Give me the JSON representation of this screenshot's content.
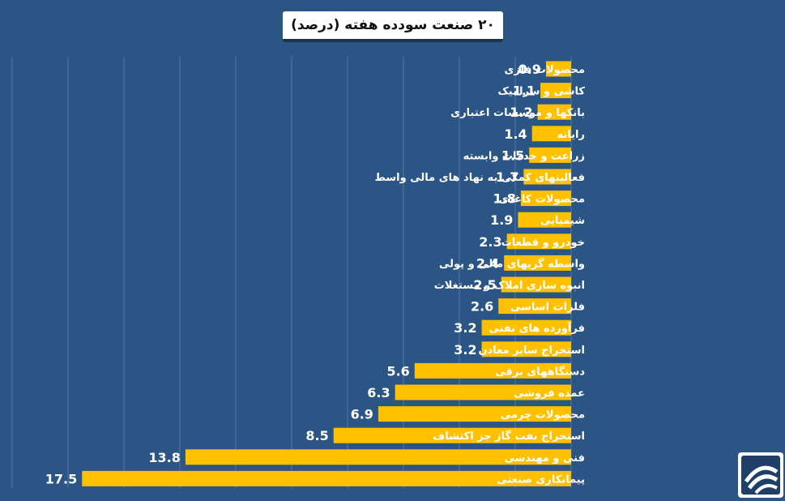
{
  "colors": {
    "background": "#2b5585",
    "bar": "#ffc000",
    "gridline": "#4f77a3",
    "label_text": "#ffffff"
  },
  "logo": {
    "icon": "logo-icon"
  },
  "chart_data": {
    "type": "bar",
    "orientation": "horizontal",
    "title": "۲۰ صنعت سودده هفته (درصد)",
    "xlabel": "",
    "ylabel": "",
    "xlim": [
      0,
      20
    ],
    "grid": true,
    "categories": [
      "محصولات فلزی",
      "کاشی و سرامیک",
      "بانکها و موسسات اعتباری",
      "رایانه",
      "زراعت و خدمات وابسته",
      "فعالیتهای کمکی به نهاد های مالی واسط",
      "محصولات کاغذی",
      "شیمیایی",
      "خودرو و قطعات",
      "واسطه گریهای مالی و پولی",
      "انبوه سازی املاک و مستغلات",
      "فلزات اساسی",
      "فرآورده های نفتی",
      "استخراج سایر معادن",
      "دستگاههای برقی",
      "عمده فروشی",
      "محصولات چرمی",
      "استخراج نفت گاز جز اکتشاف",
      "فنی و مهندسی",
      "پیمانکاری صنعتی"
    ],
    "values": [
      0.9,
      1.1,
      1.2,
      1.4,
      1.5,
      1.7,
      1.8,
      1.9,
      2.3,
      2.4,
      2.5,
      2.6,
      3.2,
      3.2,
      5.6,
      6.3,
      6.9,
      8.5,
      13.8,
      17.5
    ],
    "value_labels": [
      "0.9",
      "1.1",
      "1.2",
      "1.4",
      "1.5",
      "1.7",
      "1.8",
      "1.9",
      "2.3",
      "2.4",
      "2.5",
      "2.6",
      "3.2",
      "3.2",
      "5.6",
      "6.3",
      "6.9",
      "8.5",
      "13.8",
      "17.5"
    ]
  }
}
